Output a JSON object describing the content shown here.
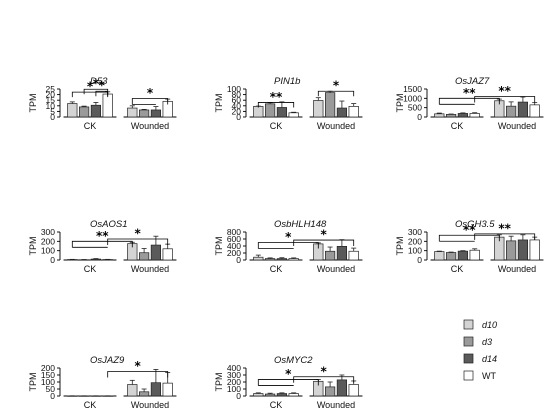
{
  "figure": {
    "legend": [
      {
        "label": "d10",
        "color": "#d4d4d4",
        "italic": true
      },
      {
        "label": "d3",
        "color": "#9a9a9a",
        "italic": true
      },
      {
        "label": "d14",
        "color": "#5a5a5a",
        "italic": true
      },
      {
        "label": "WT",
        "color": "#ffffff",
        "italic": false
      }
    ]
  },
  "chart_data": [
    {
      "type": "bar",
      "title": "D53",
      "ylabel": "TPM",
      "ylim": [
        0,
        25
      ],
      "yticks": [
        0,
        5,
        10,
        15,
        20,
        25
      ],
      "categories": [
        "CK",
        "Wounded"
      ],
      "series": [
        {
          "name": "d10",
          "values": [
            12,
            8
          ]
        },
        {
          "name": "d3",
          "values": [
            9,
            6.3
          ]
        },
        {
          "name": "d14",
          "values": [
            10.5,
            6.3
          ]
        },
        {
          "name": "WT",
          "values": [
            20.5,
            14
          ]
        }
      ],
      "errors": [
        {
          "name": "d10",
          "values": [
            1.5,
            2
          ]
        },
        {
          "name": "d3",
          "values": [
            0.7,
            0.5
          ]
        },
        {
          "name": "d14",
          "values": [
            2.5,
            3
          ]
        },
        {
          "name": "WT",
          "values": [
            2,
            2
          ]
        }
      ],
      "sig": [
        {
          "label": "*",
          "type": "bracket",
          "from": [
            0,
            2
          ],
          "to": [
            0,
            3
          ],
          "y": 23
        },
        {
          "label": "*",
          "type": "bracket",
          "from": [
            0,
            1
          ],
          "to": [
            0,
            3
          ],
          "y": 24.8
        },
        {
          "label": "*",
          "type": "bracket",
          "from": [
            0,
            0
          ],
          "to": [
            0,
            3
          ],
          "y": 22.2
        },
        {
          "label": "*",
          "type": "group",
          "from": [
            1,
            0,
            2
          ],
          "to": [
            1,
            3
          ],
          "y": 16.5
        }
      ]
    },
    {
      "type": "bar",
      "title": "PIN1b",
      "ylabel": "TPM",
      "ylim": [
        0,
        100
      ],
      "yticks": [
        0,
        20,
        40,
        60,
        80,
        100
      ],
      "categories": [
        "CK",
        "Wounded"
      ],
      "series": [
        {
          "name": "d10",
          "values": [
            38,
            59
          ]
        },
        {
          "name": "d3",
          "values": [
            47,
            87
          ]
        },
        {
          "name": "d14",
          "values": [
            34,
            32
          ]
        },
        {
          "name": "WT",
          "values": [
            15,
            38
          ]
        }
      ],
      "errors": [
        {
          "name": "d10",
          "values": [
            1,
            10
          ]
        },
        {
          "name": "d3",
          "values": [
            4,
            5
          ]
        },
        {
          "name": "d14",
          "values": [
            20,
            25
          ]
        },
        {
          "name": "WT",
          "values": [
            2,
            10
          ]
        }
      ],
      "sig": [
        {
          "label": "**",
          "type": "bracket",
          "from": [
            0,
            0
          ],
          "to": [
            0,
            3
          ],
          "y": 52
        },
        {
          "label": "*",
          "type": "bracket",
          "from": [
            1,
            0
          ],
          "to": [
            1,
            3
          ],
          "y": 92
        }
      ]
    },
    {
      "type": "bar",
      "title": "OsJAZ7",
      "ylabel": "TPM",
      "ylim": [
        0,
        1500
      ],
      "yticks": [
        0,
        500,
        1000,
        1500
      ],
      "categories": [
        "CK",
        "Wounded"
      ],
      "series": [
        {
          "name": "d10",
          "values": [
            170,
            870
          ]
        },
        {
          "name": "d3",
          "values": [
            140,
            580
          ]
        },
        {
          "name": "d14",
          "values": [
            190,
            800
          ]
        },
        {
          "name": "WT",
          "values": [
            190,
            650
          ]
        }
      ],
      "errors": [
        {
          "name": "d10",
          "values": [
            40,
            90
          ]
        },
        {
          "name": "d3",
          "values": [
            20,
            230
          ]
        },
        {
          "name": "d14",
          "values": [
            30,
            270
          ]
        },
        {
          "name": "WT",
          "values": [
            40,
            120
          ]
        }
      ],
      "sig": [
        {
          "label": "**",
          "type": "group",
          "from": [
            0,
            0,
            3
          ],
          "to": [
            1,
            0
          ],
          "y": 1000
        },
        {
          "label": "**",
          "type": "group",
          "from": [
            0,
            3,
            3
          ],
          "to": [
            1,
            3
          ],
          "y": 1100
        }
      ]
    },
    {
      "type": "bar",
      "title": "OsAOS1",
      "ylabel": "TPM",
      "ylim": [
        0,
        300
      ],
      "yticks": [
        0,
        100,
        200,
        300
      ],
      "categories": [
        "CK",
        "Wounded"
      ],
      "series": [
        {
          "name": "d10",
          "values": [
            5,
            175
          ]
        },
        {
          "name": "d3",
          "values": [
            3,
            78
          ]
        },
        {
          "name": "d14",
          "values": [
            10,
            160
          ]
        },
        {
          "name": "WT",
          "values": [
            5,
            120
          ]
        }
      ],
      "errors": [
        {
          "name": "d10",
          "values": [
            2,
            15
          ]
        },
        {
          "name": "d3",
          "values": [
            2,
            45
          ]
        },
        {
          "name": "d14",
          "values": [
            5,
            95
          ]
        },
        {
          "name": "WT",
          "values": [
            2,
            50
          ]
        }
      ],
      "sig": [
        {
          "label": "**",
          "type": "group",
          "from": [
            0,
            0,
            3
          ],
          "to": [
            1,
            0
          ],
          "y": 200
        },
        {
          "label": "*",
          "type": "group",
          "from": [
            0,
            3,
            3
          ],
          "to": [
            1,
            3
          ],
          "y": 225
        }
      ]
    },
    {
      "type": "bar",
      "title": "OsbHLH148",
      "ylabel": "TPM",
      "ylim": [
        0,
        800
      ],
      "yticks": [
        0,
        200,
        400,
        600,
        800
      ],
      "categories": [
        "CK",
        "Wounded"
      ],
      "series": [
        {
          "name": "d10",
          "values": [
            80,
            460
          ]
        },
        {
          "name": "d3",
          "values": [
            40,
            250
          ]
        },
        {
          "name": "d14",
          "values": [
            40,
            390
          ]
        },
        {
          "name": "WT",
          "values": [
            40,
            250
          ]
        }
      ],
      "errors": [
        {
          "name": "d10",
          "values": [
            60,
            30
          ]
        },
        {
          "name": "d3",
          "values": [
            20,
            120
          ]
        },
        {
          "name": "d14",
          "values": [
            25,
            190
          ]
        },
        {
          "name": "WT",
          "values": [
            20,
            90
          ]
        }
      ],
      "sig": [
        {
          "label": "*",
          "type": "group",
          "from": [
            0,
            0,
            3
          ],
          "to": [
            1,
            0
          ],
          "y": 500
        },
        {
          "label": "*",
          "type": "group",
          "from": [
            0,
            3,
            3
          ],
          "to": [
            1,
            3
          ],
          "y": 570
        }
      ]
    },
    {
      "type": "bar",
      "title": "OsGH3.5",
      "ylabel": "TPM",
      "ylim": [
        0,
        300
      ],
      "yticks": [
        0,
        100,
        200,
        300
      ],
      "categories": [
        "CK",
        "Wounded"
      ],
      "series": [
        {
          "name": "d10",
          "values": [
            90,
            245
          ]
        },
        {
          "name": "d3",
          "values": [
            80,
            205
          ]
        },
        {
          "name": "d14",
          "values": [
            95,
            215
          ]
        },
        {
          "name": "WT",
          "values": [
            105,
            215
          ]
        }
      ],
      "errors": [
        {
          "name": "d10",
          "values": [
            5,
            25
          ]
        },
        {
          "name": "d3",
          "values": [
            5,
            50
          ]
        },
        {
          "name": "d14",
          "values": [
            5,
            55
          ]
        },
        {
          "name": "WT",
          "values": [
            15,
            30
          ]
        }
      ],
      "sig": [
        {
          "label": "**",
          "type": "group",
          "from": [
            0,
            0,
            3
          ],
          "to": [
            1,
            0
          ],
          "y": 265
        },
        {
          "label": "**",
          "type": "group",
          "from": [
            0,
            3,
            3
          ],
          "to": [
            1,
            3
          ],
          "y": 280
        }
      ]
    },
    {
      "type": "bar",
      "title": "OsJAZ9",
      "ylabel": "TPM",
      "ylim": [
        0,
        200
      ],
      "yticks": [
        0,
        50,
        100,
        150,
        200
      ],
      "categories": [
        "CK",
        "Wounded"
      ],
      "series": [
        {
          "name": "d10",
          "values": [
            1,
            82
          ]
        },
        {
          "name": "d3",
          "values": [
            1,
            30
          ]
        },
        {
          "name": "d14",
          "values": [
            1,
            95
          ]
        },
        {
          "name": "WT",
          "values": [
            1,
            92
          ]
        }
      ],
      "errors": [
        {
          "name": "d10",
          "values": [
            0.5,
            30
          ]
        },
        {
          "name": "d3",
          "values": [
            0.5,
            20
          ]
        },
        {
          "name": "d14",
          "values": [
            0.5,
            95
          ]
        },
        {
          "name": "WT",
          "values": [
            0.5,
            75
          ]
        }
      ],
      "sig": [
        {
          "label": "*",
          "type": "group",
          "from": [
            0,
            3,
            3
          ],
          "to": [
            1,
            3
          ],
          "y": 175
        }
      ]
    },
    {
      "type": "bar",
      "title": "OsMYC2",
      "ylabel": "TPM",
      "ylim": [
        0,
        400
      ],
      "yticks": [
        0,
        100,
        200,
        300,
        400
      ],
      "categories": [
        "CK",
        "Wounded"
      ],
      "series": [
        {
          "name": "d10",
          "values": [
            35,
            210
          ]
        },
        {
          "name": "d3",
          "values": [
            28,
            130
          ]
        },
        {
          "name": "d14",
          "values": [
            35,
            230
          ]
        },
        {
          "name": "WT",
          "values": [
            35,
            165
          ]
        }
      ],
      "errors": [
        {
          "name": "d10",
          "values": [
            10,
            25
          ]
        },
        {
          "name": "d3",
          "values": [
            12,
            70
          ]
        },
        {
          "name": "d14",
          "values": [
            10,
            70
          ]
        },
        {
          "name": "WT",
          "values": [
            10,
            50
          ]
        }
      ],
      "sig": [
        {
          "label": "*",
          "type": "group",
          "from": [
            0,
            0,
            3
          ],
          "to": [
            1,
            0
          ],
          "y": 235
        },
        {
          "label": "*",
          "type": "group",
          "from": [
            0,
            3,
            3
          ],
          "to": [
            1,
            3
          ],
          "y": 275
        }
      ]
    }
  ]
}
